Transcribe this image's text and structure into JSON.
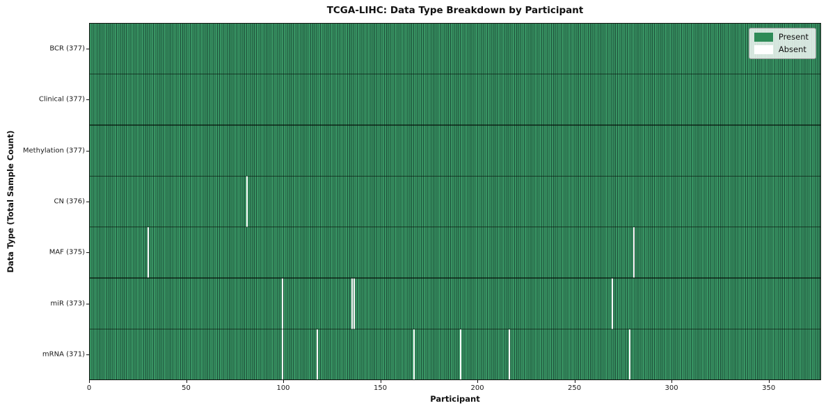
{
  "chart_data": {
    "type": "heatmap",
    "title": "TCGA-LIHC: Data Type Breakdown by Participant",
    "xlabel": "Participant",
    "ylabel": "Data Type (Total Sample Count)",
    "n_participants": 377,
    "xlim": [
      0,
      377
    ],
    "x_ticks": [
      0,
      50,
      100,
      150,
      200,
      250,
      300,
      350
    ],
    "legend": [
      "Present",
      "Absent"
    ],
    "colors": {
      "present": "#2e8b57",
      "absent": "#ffffff"
    },
    "grid": "cell-edges",
    "legend_position": "upper right",
    "rows": [
      {
        "label": "BCR",
        "total": 377,
        "absent_indices": []
      },
      {
        "label": "Clinical",
        "total": 377,
        "absent_indices": []
      },
      {
        "label": "Methylation",
        "total": 377,
        "absent_indices": []
      },
      {
        "label": "CN",
        "total": 376,
        "absent_indices": [
          81
        ]
      },
      {
        "label": "MAF",
        "total": 375,
        "absent_indices": [
          30,
          280
        ]
      },
      {
        "label": "miR",
        "total": 373,
        "absent_indices": [
          99,
          135,
          136,
          269
        ]
      },
      {
        "label": "mRNA",
        "total": 371,
        "absent_indices": [
          99,
          117,
          167,
          191,
          216,
          278
        ]
      }
    ]
  }
}
